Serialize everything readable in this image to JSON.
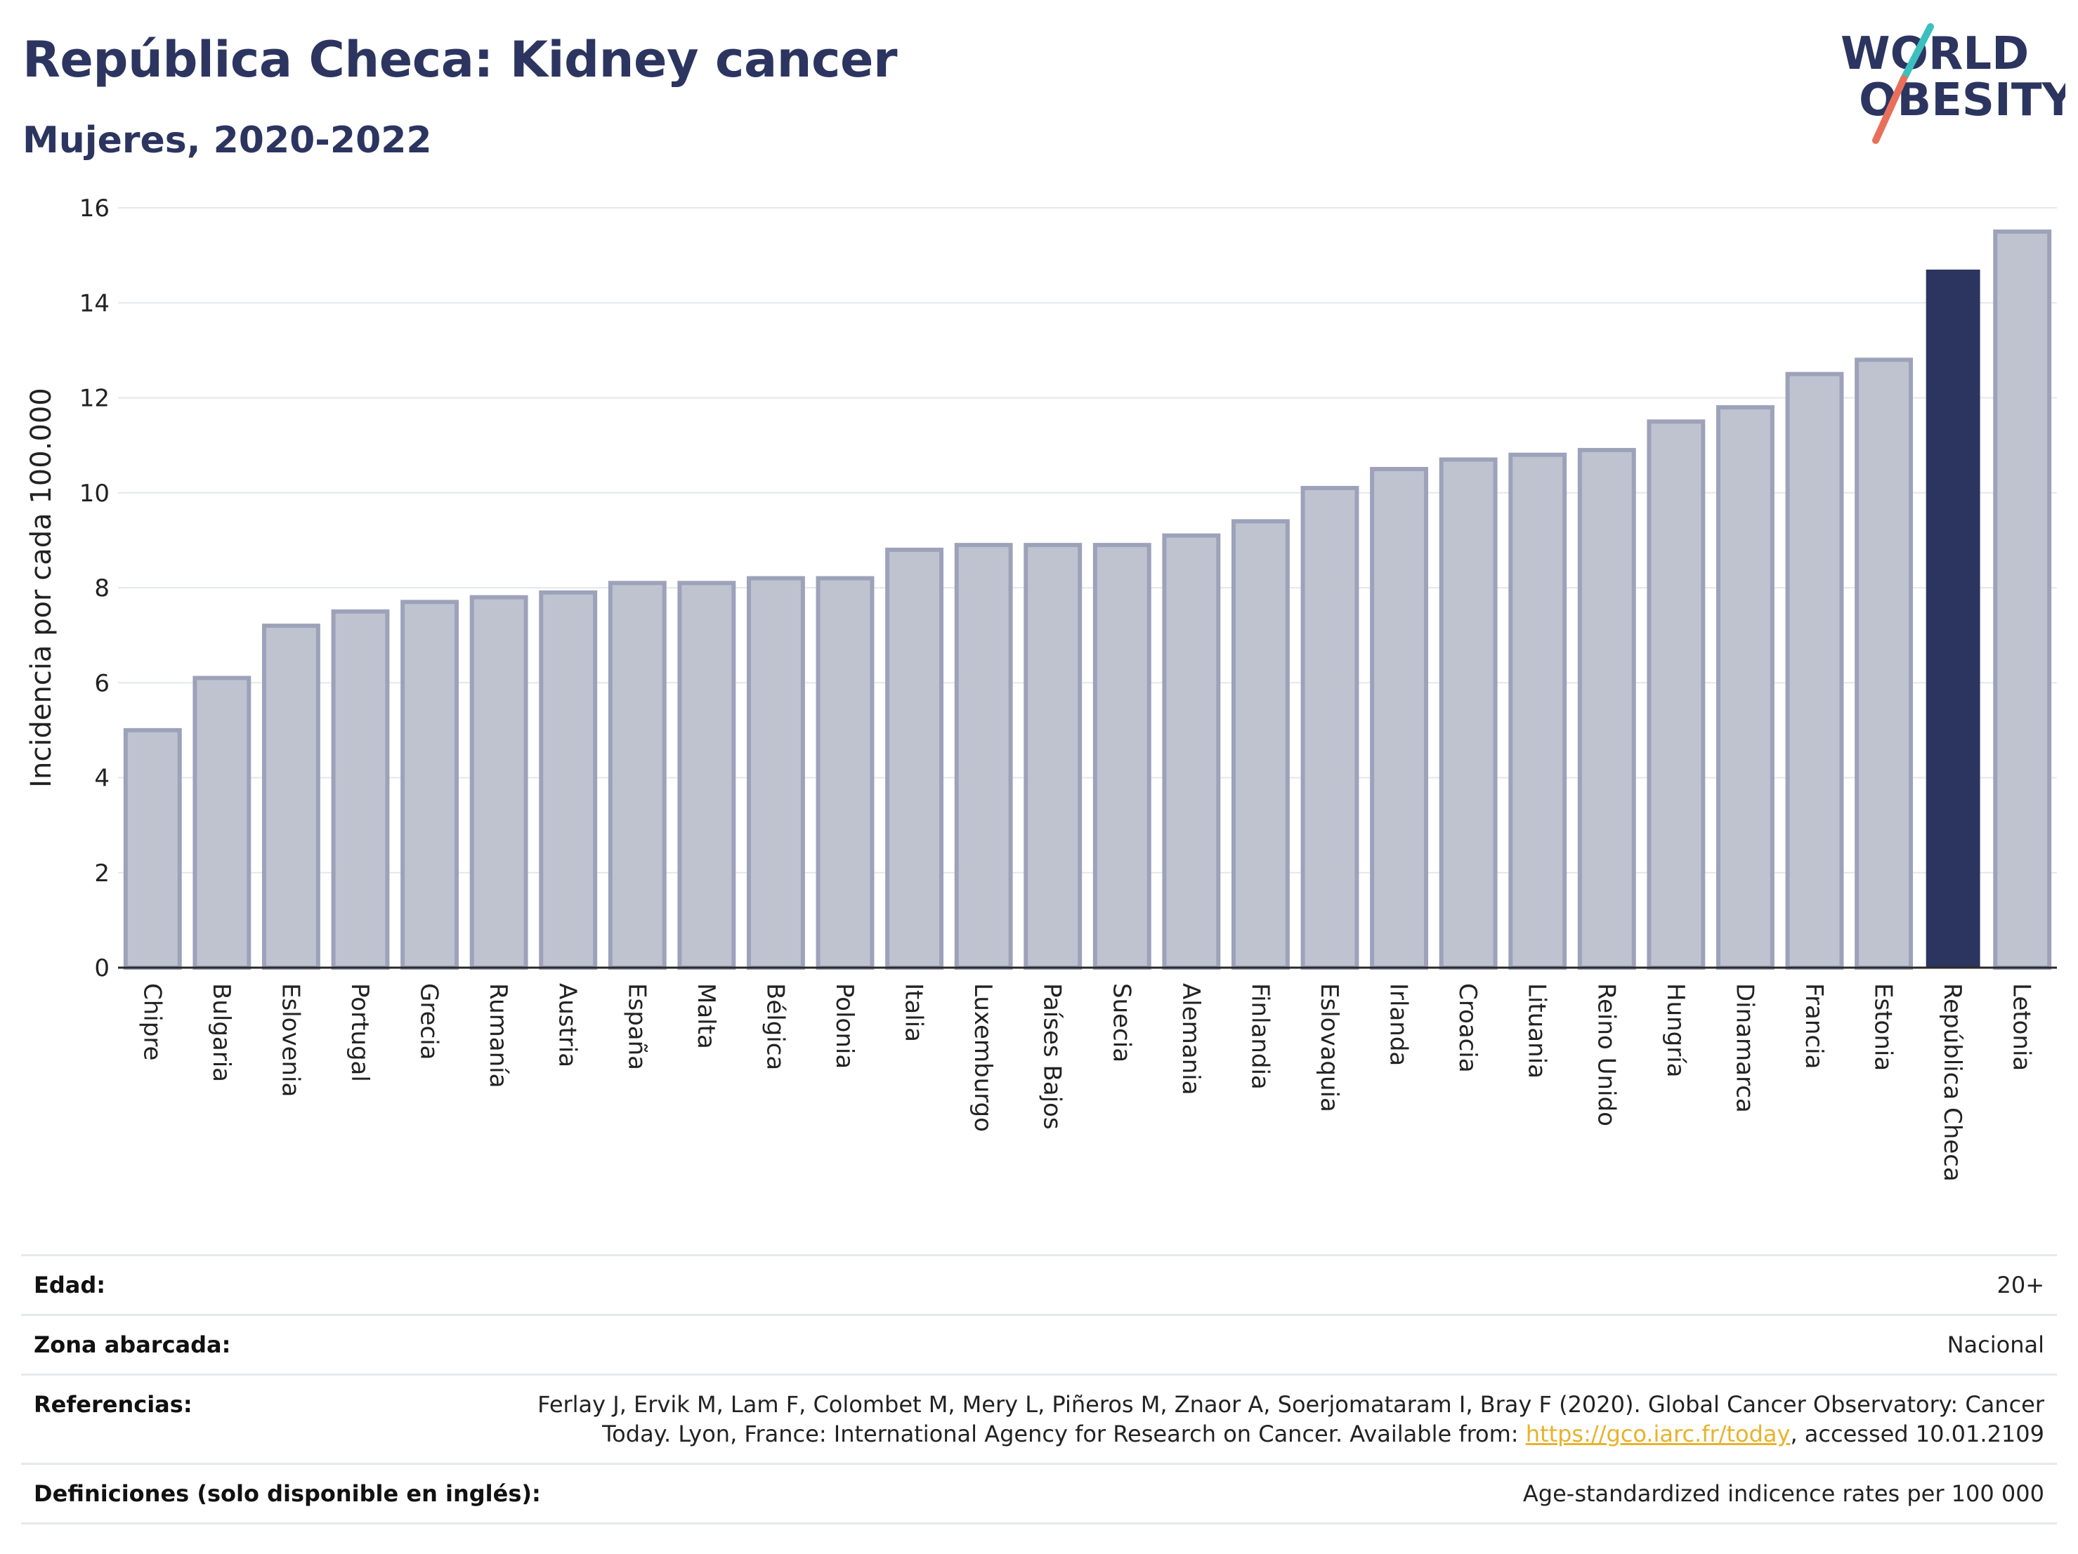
{
  "header": {
    "title": "República Checa: Kidney cancer",
    "subtitle": "Mujeres, 2020-2022"
  },
  "logo": {
    "line1": "WORLD",
    "line2": "OBESITY",
    "colors": {
      "text": "#2c3560",
      "slash_teal": "#3bbfbf",
      "slash_coral": "#e8705a"
    }
  },
  "chart_data": {
    "type": "bar",
    "ylabel": "Incidencia por cada 100.000",
    "ylim": [
      0,
      16
    ],
    "yticks": [
      "0",
      "2",
      "4",
      "6",
      "8",
      "10",
      "12",
      "14",
      "16"
    ],
    "highlight": "República Checa",
    "colors": {
      "bar": "#bfc3d0",
      "bar_stroke": "#9da2ba",
      "highlight": "#2c3560"
    },
    "categories": [
      "Chipre",
      "Bulgaria",
      "Eslovenia",
      "Portugal",
      "Grecia",
      "Rumanía",
      "Austria",
      "España",
      "Malta",
      "Bélgica",
      "Polonia",
      "Italia",
      "Luxemburgo",
      "Países Bajos",
      "Suecia",
      "Alemania",
      "Finlandia",
      "Eslovaquia",
      "Irlanda",
      "Croacia",
      "Lituania",
      "Reino Unido",
      "Hungría",
      "Dinamarca",
      "Francia",
      "Estonia",
      "República Checa",
      "Letonia"
    ],
    "values": [
      5.0,
      6.1,
      7.2,
      7.5,
      7.7,
      7.8,
      7.9,
      8.1,
      8.1,
      8.2,
      8.2,
      8.8,
      8.9,
      8.9,
      8.9,
      9.1,
      9.4,
      10.1,
      10.5,
      10.7,
      10.8,
      10.9,
      11.5,
      11.8,
      12.5,
      12.8,
      14.7,
      15.5
    ]
  },
  "meta": {
    "edad": {
      "label": "Edad:",
      "value": "20+"
    },
    "zona": {
      "label": "Zona abarcada:",
      "value": "Nacional"
    },
    "referencias": {
      "label": "Referencias:",
      "text1": "Ferlay J, Ervik M, Lam F, Colombet M, Mery L, Piñeros M, Znaor A, Soerjomataram I, Bray F (2020). Global Cancer Observatory: Cancer Today. Lyon, France: International Agency for Research on Cancer. Available from: ",
      "link": "https://gco.iarc.fr/today",
      "text2": ", accessed 10.01.2109"
    },
    "definiciones": {
      "label": "Definiciones (solo disponible en inglés):",
      "value": "Age-standardized indicence rates per 100 000"
    }
  }
}
